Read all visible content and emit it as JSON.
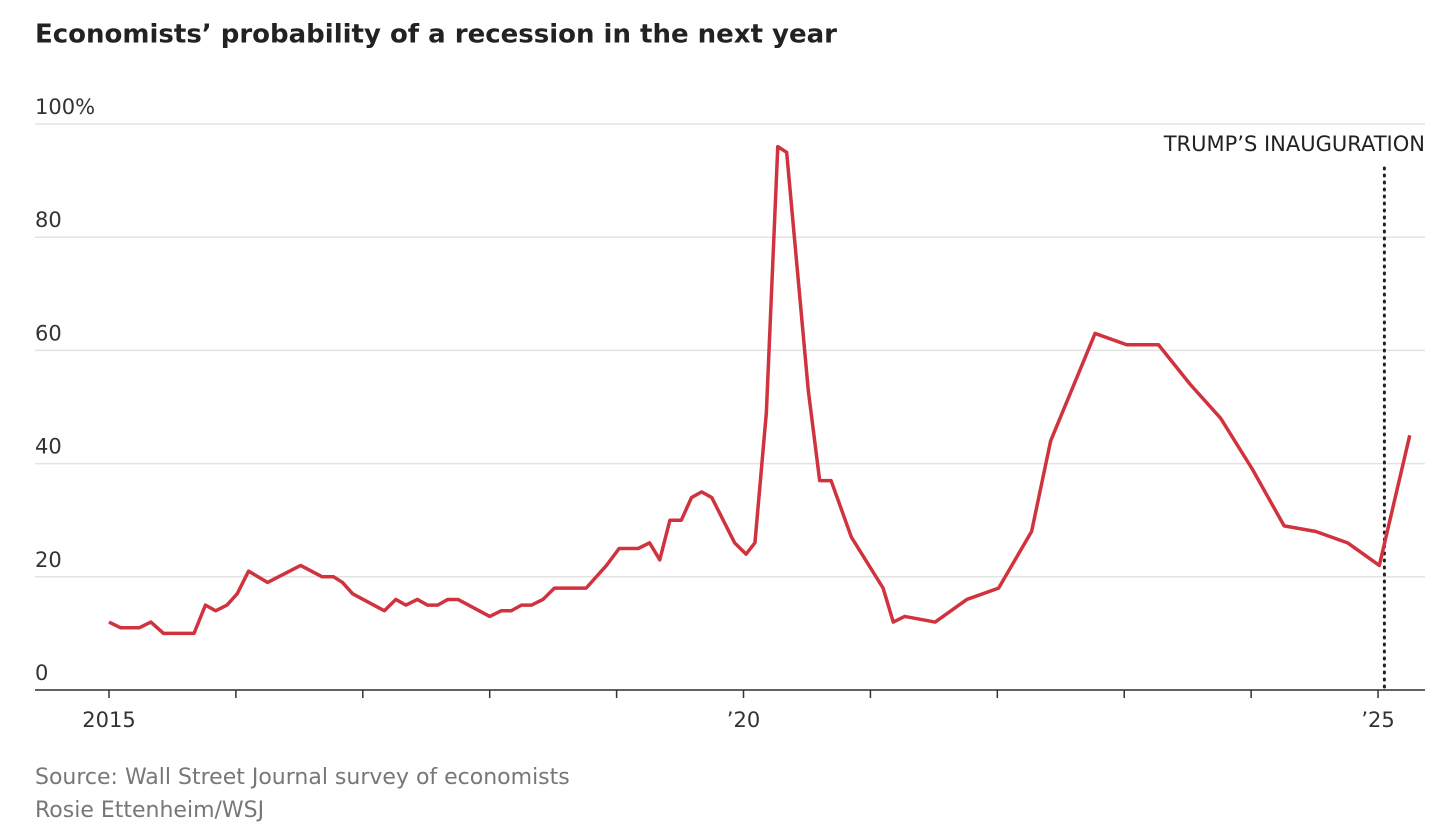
{
  "chart_data": {
    "type": "line",
    "title": "Economists’ probability of a recession in the next year",
    "source": "Source: Wall Street Journal survey of economists",
    "credit": "Rosie Ettenheim/WSJ",
    "xlim": [
      2014.417,
      2025.37
    ],
    "xticks": [
      {
        "value": 2015,
        "label": "2015"
      },
      {
        "value": 2020,
        "label": "’20"
      },
      {
        "value": 2025,
        "label": "’25"
      }
    ],
    "xminor_ticks": [
      2016,
      2017,
      2018,
      2019,
      2021,
      2022,
      2023,
      2024
    ],
    "ylim": [
      0,
      100
    ],
    "yticks": [
      0,
      20,
      40,
      60,
      80,
      {
        "value": 100,
        "label": "100%"
      }
    ],
    "grid": true,
    "annotation": {
      "text": "TRUMP’S INAUGURATION",
      "x": 2025.05
    },
    "x": [
      2015.0,
      2015.09,
      2015.24,
      2015.33,
      2015.43,
      2015.67,
      2015.76,
      2015.84,
      2015.93,
      2016.01,
      2016.1,
      2016.25,
      2016.51,
      2016.68,
      2016.77,
      2016.84,
      2016.92,
      2017.17,
      2017.26,
      2017.34,
      2017.43,
      2017.51,
      2017.59,
      2017.67,
      2017.75,
      2018.0,
      2018.09,
      2018.17,
      2018.25,
      2018.33,
      2018.42,
      2018.51,
      2018.76,
      2018.92,
      2019.02,
      2019.17,
      2019.26,
      2019.34,
      2019.42,
      2019.51,
      2019.59,
      2019.67,
      2019.75,
      2019.93,
      2020.02,
      2020.09,
      2020.18,
      2020.27,
      2020.34,
      2020.51,
      2020.6,
      2020.69,
      2020.85,
      2021.1,
      2021.18,
      2021.27,
      2021.51,
      2021.76,
      2022.01,
      2022.27,
      2022.42,
      2022.77,
      2023.02,
      2023.27,
      2023.52,
      2023.76,
      2024.01,
      2024.26,
      2024.51,
      2024.76,
      2025.01,
      2025.25
    ],
    "series": [
      {
        "name": "Recession probability",
        "color": "#d0333e",
        "values": [
          12,
          11,
          11,
          12,
          10,
          10,
          15,
          14,
          15,
          17,
          21,
          19,
          22,
          20,
          20,
          19,
          17,
          14,
          16,
          15,
          16,
          15,
          15,
          16,
          16,
          13,
          14,
          14,
          15,
          15,
          16,
          18,
          18,
          22,
          25,
          25,
          26,
          23,
          30,
          30,
          34,
          35,
          34,
          26,
          24,
          26,
          49,
          96,
          95,
          53,
          37,
          37,
          27,
          18,
          12,
          13,
          12,
          16,
          18,
          28,
          44,
          63,
          61,
          61,
          54,
          48,
          39,
          29,
          28,
          26,
          22,
          45
        ]
      }
    ]
  }
}
